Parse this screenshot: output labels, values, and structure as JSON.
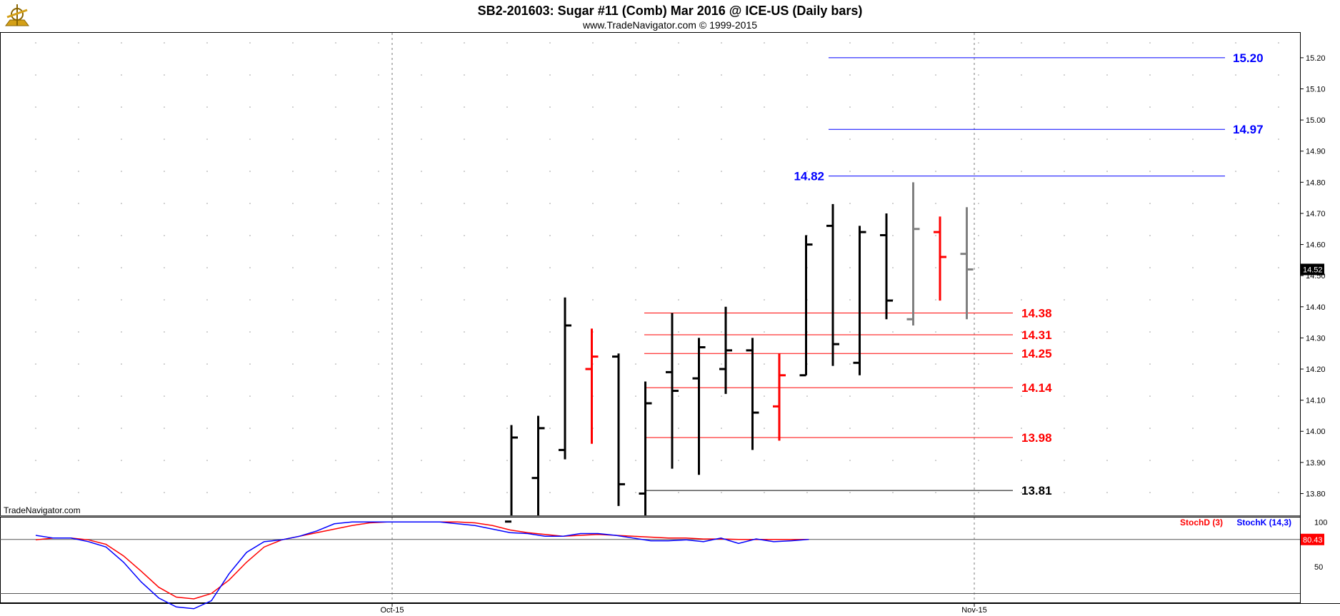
{
  "header": {
    "title": "SB2-201603:  Sugar #11 (Comb) Mar 2016 @ ICE-US  (Daily bars)",
    "subtitle": "www.TradeNavigator.com © 1999-2015",
    "watermark": "TradeNavigator.com",
    "logo_icon": "sextant-logo-icon"
  },
  "colors": {
    "up": "#000000",
    "down": "#ff0000",
    "latest": "#808080",
    "resistance": "#0000ff",
    "support": "#ff0000",
    "base": "#000000",
    "stochK": "#0000ff",
    "stochD": "#ff0000"
  },
  "chart_data": [
    {
      "type": "ohlc",
      "ylim": [
        13.73,
        15.28
      ],
      "yticks": [
        "13.80",
        "13.90",
        "14.00",
        "14.10",
        "14.20",
        "14.30",
        "14.40",
        "14.50",
        "14.60",
        "14.70",
        "14.80",
        "14.90",
        "15.00",
        "15.10",
        "15.20"
      ],
      "xticks": [
        "Oct-15",
        "Nov-15"
      ],
      "last_price": "14.52",
      "bars": [
        {
          "o": 13.71,
          "h": 14.02,
          "l": 13.7,
          "c": 13.98,
          "color": "up"
        },
        {
          "o": 13.85,
          "h": 14.05,
          "l": 13.7,
          "c": 14.01,
          "color": "up"
        },
        {
          "o": 13.94,
          "h": 14.43,
          "l": 13.91,
          "c": 14.34,
          "color": "up"
        },
        {
          "o": 14.2,
          "h": 14.33,
          "l": 13.96,
          "c": 14.24,
          "color": "down"
        },
        {
          "o": 14.24,
          "h": 14.25,
          "l": 13.76,
          "c": 13.83,
          "color": "up"
        },
        {
          "o": 13.8,
          "h": 14.16,
          "l": 13.72,
          "c": 14.09,
          "color": "up"
        },
        {
          "o": 14.19,
          "h": 14.38,
          "l": 13.88,
          "c": 14.13,
          "color": "up"
        },
        {
          "o": 14.17,
          "h": 14.3,
          "l": 13.86,
          "c": 14.27,
          "color": "up"
        },
        {
          "o": 14.2,
          "h": 14.4,
          "l": 14.12,
          "c": 14.26,
          "color": "up"
        },
        {
          "o": 14.26,
          "h": 14.3,
          "l": 13.94,
          "c": 14.06,
          "color": "up"
        },
        {
          "o": 14.08,
          "h": 14.25,
          "l": 13.97,
          "c": 14.18,
          "color": "down"
        },
        {
          "o": 14.18,
          "h": 14.63,
          "l": 14.18,
          "c": 14.6,
          "color": "up"
        },
        {
          "o": 14.66,
          "h": 14.73,
          "l": 14.21,
          "c": 14.28,
          "color": "up"
        },
        {
          "o": 14.22,
          "h": 14.66,
          "l": 14.18,
          "c": 14.64,
          "color": "up"
        },
        {
          "o": 14.63,
          "h": 14.7,
          "l": 14.36,
          "c": 14.42,
          "color": "up"
        },
        {
          "o": 14.36,
          "h": 14.8,
          "l": 14.34,
          "c": 14.65,
          "color": "latest"
        },
        {
          "o": 14.64,
          "h": 14.69,
          "l": 14.42,
          "c": 14.56,
          "color": "down"
        },
        {
          "o": 14.57,
          "h": 14.72,
          "l": 14.36,
          "c": 14.52,
          "color": "latest"
        }
      ],
      "levels": [
        {
          "value": "15.20",
          "kind": "resistance"
        },
        {
          "value": "14.97",
          "kind": "resistance"
        },
        {
          "value": "14.82",
          "kind": "resistance"
        },
        {
          "value": "14.38",
          "kind": "support"
        },
        {
          "value": "14.31",
          "kind": "support"
        },
        {
          "value": "14.25",
          "kind": "support"
        },
        {
          "value": "14.14",
          "kind": "support"
        },
        {
          "value": "13.98",
          "kind": "support"
        },
        {
          "value": "13.81",
          "kind": "base"
        }
      ]
    },
    {
      "type": "line",
      "ylim": [
        10,
        105
      ],
      "yticks": [
        "50",
        "100"
      ],
      "reference_lines": [
        80.43,
        20
      ],
      "last_value": "80.43",
      "series": [
        {
          "name": "StochD (3)",
          "values": [
            80,
            82,
            82,
            80,
            75,
            62,
            45,
            27,
            16,
            14,
            20,
            35,
            55,
            72,
            80,
            84,
            88,
            92,
            96,
            99,
            100,
            100,
            100,
            100,
            100,
            99,
            96,
            91,
            88,
            86,
            84,
            85,
            86,
            85,
            84,
            83,
            82,
            82,
            81,
            81,
            80.5,
            80.4,
            80.5,
            80.4,
            80.43
          ]
        },
        {
          "name": "StochK (14,3)",
          "values": [
            85,
            82,
            82,
            78,
            72,
            55,
            33,
            15,
            5,
            3,
            12,
            42,
            66,
            78,
            80,
            84,
            90,
            98,
            100,
            100,
            100,
            100,
            100,
            100,
            98,
            96,
            92,
            88,
            87,
            84,
            84,
            87,
            87,
            85,
            82,
            79,
            79,
            80,
            78,
            82,
            76,
            81,
            78,
            79,
            80.5
          ]
        }
      ]
    }
  ]
}
